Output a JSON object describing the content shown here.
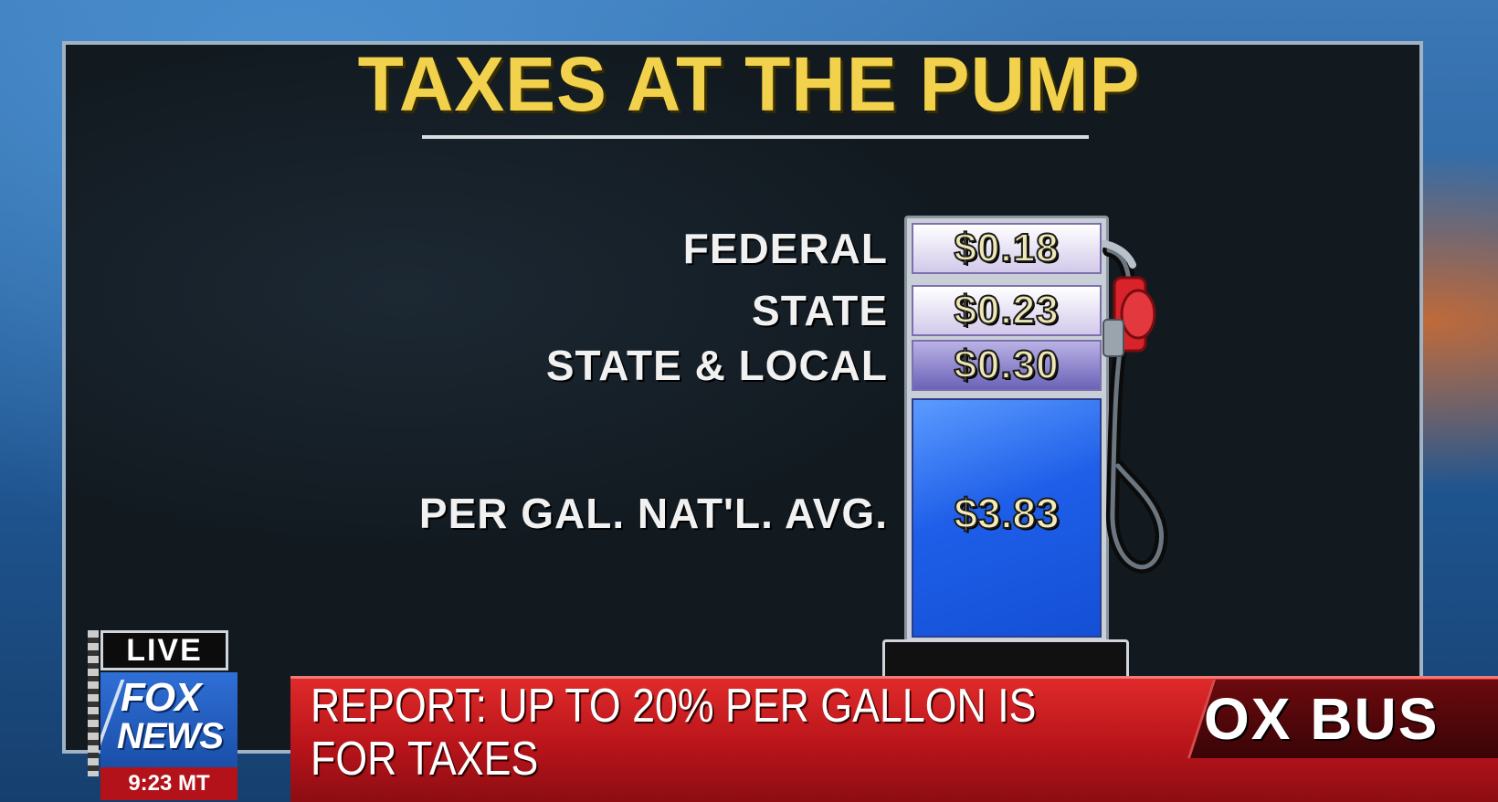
{
  "graphic": {
    "title": "TAXES AT THE PUMP",
    "rows": [
      {
        "label": "FEDERAL",
        "value": "$0.18"
      },
      {
        "label": "STATE",
        "value": "$0.23"
      },
      {
        "label": "STATE & LOCAL",
        "value": "$0.30"
      }
    ],
    "average": {
      "label": "PER GAL. NAT'L. AVG.",
      "value": "$3.83"
    }
  },
  "broadcast": {
    "live_label": "LIVE",
    "logo_line1": "FOX",
    "logo_line2": "NEWS",
    "time": "9:23 MT",
    "ticker_text": "REPORT: UP TO 20% PER GALLON IS FOR TAXES",
    "network_text": "OX BUS"
  },
  "colors": {
    "title_yellow": "#f2d24d",
    "ticker_red": "#c4161c",
    "screen_blue": "#1e5ee8",
    "panel_dark": "#121a20"
  }
}
